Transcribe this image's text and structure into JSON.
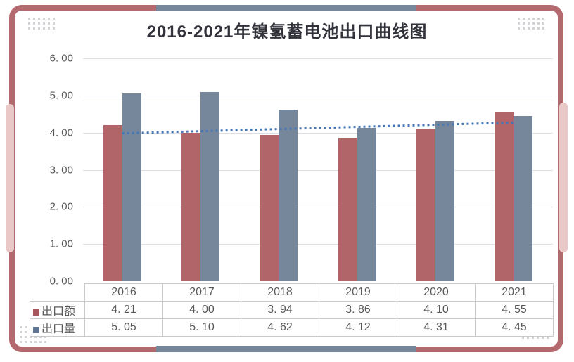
{
  "title": "2016-2021年镍氢蓄电池出口曲线图",
  "chart_data": {
    "type": "bar",
    "title": "2016-2021年镍氢蓄电池出口曲线图",
    "categories": [
      "2016",
      "2017",
      "2018",
      "2019",
      "2020",
      "2021"
    ],
    "series": [
      {
        "name": "出口额",
        "color": "#b26568",
        "marker_color": "#a6565c",
        "values": [
          4.21,
          4.0,
          3.94,
          3.86,
          4.1,
          4.55
        ],
        "display_values": [
          "4. 21",
          "4. 00",
          "3. 94",
          "3. 86",
          "4. 10",
          "4. 55"
        ]
      },
      {
        "name": "出口量",
        "color": "#76879c",
        "marker_color": "#5e7493",
        "values": [
          5.05,
          5.1,
          4.62,
          4.12,
          4.31,
          4.45
        ],
        "display_values": [
          "5. 05",
          "5. 10",
          "4. 62",
          "4. 12",
          "4. 31",
          "4. 45"
        ]
      }
    ],
    "y_axis": {
      "min": 0,
      "max": 6,
      "tick_step": 1,
      "tick_labels": [
        "6. 00",
        "5. 00",
        "4. 00",
        "3. 00",
        "2. 00",
        "1. 00",
        "0. 00"
      ]
    },
    "trendline": {
      "style": "dotted",
      "color": "#4576b5",
      "start_value": 3.98,
      "end_value": 4.27
    },
    "grid": true,
    "legend_position": "table-left",
    "data_table_shown": true
  },
  "theme": {
    "card_border": "#b3696d",
    "accent_pink": "#ebc8c8",
    "accent_gray_band": "#76879c",
    "dot_pattern": "#d3d3d7",
    "gridline": "#dcdee4",
    "table_border": "#c9c9c9",
    "axis_text": "#595959",
    "title_text": "#31323a",
    "background": "#ffffff"
  }
}
